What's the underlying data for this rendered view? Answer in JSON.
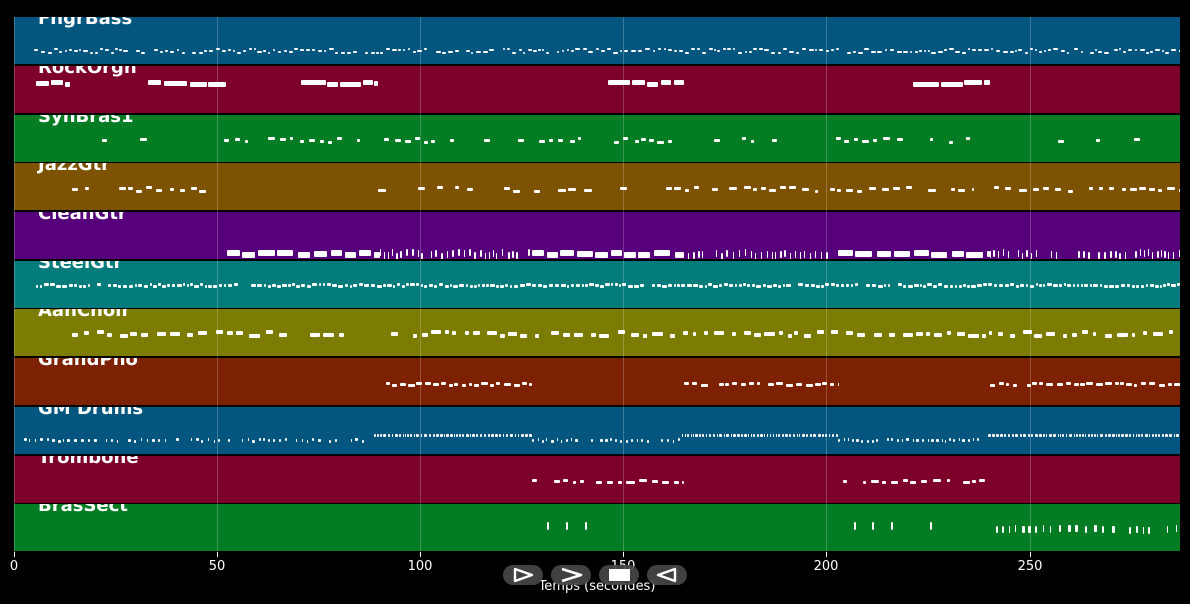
{
  "timeline": {
    "duration_seconds": 287,
    "x_axis": {
      "label": "Temps (secondes)",
      "ticks": [
        {
          "value": 0,
          "label": "0"
        },
        {
          "value": 50,
          "label": "50"
        },
        {
          "value": 100,
          "label": "100"
        },
        {
          "value": 150,
          "label": "150"
        },
        {
          "value": 200,
          "label": "200"
        },
        {
          "value": 250,
          "label": "250"
        }
      ]
    },
    "tracks": [
      {
        "id": "fngrbass",
        "name": "FngrBass",
        "color": "#04567f"
      },
      {
        "id": "rockorgn",
        "name": "RockOrgn",
        "color": "#7c0029"
      },
      {
        "id": "synbras1",
        "name": "SynBras1",
        "color": "#047c23"
      },
      {
        "id": "jazzgtr",
        "name": "JazzGtr",
        "color": "#7d5302"
      },
      {
        "id": "cleangtr",
        "name": "CleanGtr",
        "color": "#56007c"
      },
      {
        "id": "steelgtr",
        "name": "SteelGtr",
        "color": "#047c7c"
      },
      {
        "id": "aahchoir",
        "name": "AahChoir",
        "color": "#7c7c02"
      },
      {
        "id": "grandpno",
        "name": "GrandPno",
        "color": "#7c2102"
      },
      {
        "id": "gmdrums",
        "name": "GM Drums",
        "color": "#04567f"
      },
      {
        "id": "trombone",
        "name": "Trombone",
        "color": "#7c0029"
      },
      {
        "id": "brassect",
        "name": "BrasSect",
        "color": "#047c23"
      }
    ]
  },
  "toolbar": {
    "buttons": [
      {
        "id": "play-forward",
        "icon": "play-outline-icon"
      },
      {
        "id": "fast-forward",
        "icon": "chevron-right-icon"
      },
      {
        "id": "stop",
        "icon": "stop-icon"
      },
      {
        "id": "rewind",
        "icon": "chevron-left-icon"
      }
    ]
  }
}
